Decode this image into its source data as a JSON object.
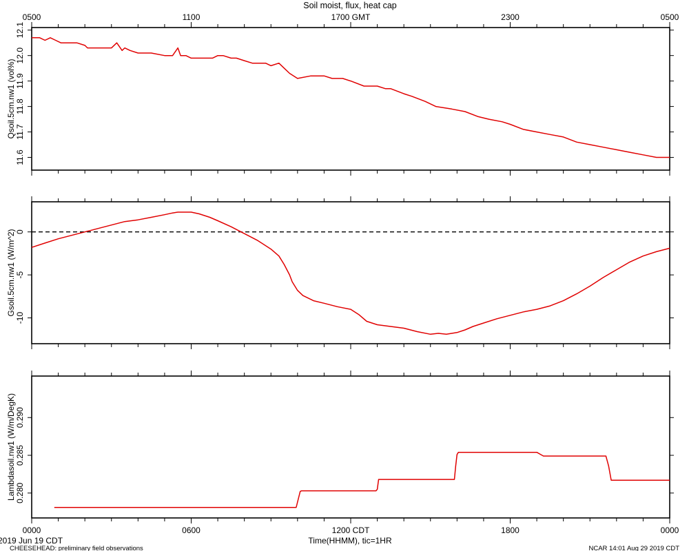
{
  "header": {
    "title": "Soil moist, flux, heat cap"
  },
  "footer": {
    "date_label": "2019 Jun 19 CDT",
    "project_label": "CHEESEHEAD: preliminary field observations",
    "credit_label": "NCAR 14:01 Aug 29 2019 CDT",
    "xlabel": "Time(HHMM), tic=1HR"
  },
  "colors": {
    "series": "#e00000",
    "axes": "#000000",
    "background": "#ffffff"
  },
  "chart_data": [
    {
      "type": "line",
      "title": "Soil moist, flux, heat cap",
      "ylabel": "Qsoil.5cm.nw1 (vol%)",
      "xlabel": "",
      "xlim": [
        0,
        24
      ],
      "ylim": [
        11.55,
        12.11
      ],
      "yticks": [
        11.6,
        11.7,
        11.8,
        11.9,
        12.0,
        12.1
      ],
      "ytick_labels": [
        "11.6",
        "11.7",
        "11.8",
        "11.9",
        "12.0",
        "12.1"
      ],
      "top_axis": {
        "ticks": [
          0,
          6,
          12,
          18,
          24
        ],
        "labels": [
          "0500",
          "1100",
          "1700 GMT",
          "2300",
          "0500"
        ]
      },
      "grid": false,
      "series": [
        {
          "x": [
            0,
            0.3,
            0.5,
            0.7,
            0.9,
            1.1,
            1.3,
            1.5,
            1.7,
            2.0,
            2.1,
            2.5,
            3.0,
            3.2,
            3.4,
            3.5,
            3.7,
            4.0,
            4.2,
            4.5,
            5.0,
            5.3,
            5.5,
            5.6,
            5.8,
            6.0,
            6.2,
            6.5,
            6.8,
            7.0,
            7.2,
            7.5,
            7.7,
            8.0,
            8.3,
            8.5,
            8.8,
            9.0,
            9.3,
            9.5,
            9.7,
            10.0,
            10.5,
            11.0,
            11.3,
            11.7,
            12.0,
            12.5,
            13.0,
            13.3,
            13.5,
            14.0,
            14.3,
            14.8,
            15.2,
            15.8,
            16.3,
            16.8,
            17.2,
            17.7,
            18.0,
            18.5,
            19.0,
            19.5,
            20.0,
            20.5,
            21.0,
            21.5,
            22.0,
            22.5,
            23.0,
            23.5,
            23.8,
            24.0
          ],
          "y": [
            12.07,
            12.07,
            12.06,
            12.07,
            12.06,
            12.05,
            12.05,
            12.05,
            12.05,
            12.04,
            12.03,
            12.03,
            12.03,
            12.05,
            12.02,
            12.03,
            12.02,
            12.01,
            12.01,
            12.01,
            12.0,
            12.0,
            12.03,
            12.0,
            12.0,
            11.99,
            11.99,
            11.99,
            11.99,
            12.0,
            12.0,
            11.99,
            11.99,
            11.98,
            11.97,
            11.97,
            11.97,
            11.96,
            11.97,
            11.95,
            11.93,
            11.91,
            11.92,
            11.92,
            11.91,
            11.91,
            11.9,
            11.88,
            11.88,
            11.87,
            11.87,
            11.85,
            11.84,
            11.82,
            11.8,
            11.79,
            11.78,
            11.76,
            11.75,
            11.74,
            11.73,
            11.71,
            11.7,
            11.69,
            11.68,
            11.66,
            11.65,
            11.64,
            11.63,
            11.62,
            11.61,
            11.6,
            11.6,
            11.6
          ]
        }
      ]
    },
    {
      "type": "line",
      "title": "",
      "ylabel": "Gsoil.5cm.nw1 (W/m^2)",
      "xlabel": "",
      "xlim": [
        0,
        24
      ],
      "ylim": [
        -13,
        3.5
      ],
      "yticks": [
        -10,
        -5,
        0
      ],
      "ytick_labels": [
        "-10",
        "-5",
        "0"
      ],
      "reference_line": {
        "y": 0,
        "style": "dashed"
      },
      "grid": false,
      "series": [
        {
          "x": [
            0,
            0.5,
            1.0,
            1.5,
            2.0,
            2.5,
            3.0,
            3.5,
            4.0,
            4.5,
            5.0,
            5.3,
            5.5,
            5.8,
            6.0,
            6.3,
            6.7,
            7.0,
            7.5,
            8.0,
            8.5,
            9.0,
            9.3,
            9.5,
            9.7,
            9.8,
            10.0,
            10.2,
            10.4,
            10.6,
            11.0,
            11.5,
            12.0,
            12.3,
            12.6,
            13.0,
            13.5,
            14.0,
            14.5,
            15.0,
            15.3,
            15.6,
            16.0,
            16.3,
            16.6,
            17.0,
            17.5,
            18.0,
            18.5,
            19.0,
            19.5,
            20.0,
            20.5,
            21.0,
            21.5,
            22.0,
            22.5,
            23.0,
            23.5,
            24.0
          ],
          "y": [
            -1.8,
            -1.3,
            -0.8,
            -0.4,
            0.0,
            0.4,
            0.8,
            1.2,
            1.4,
            1.7,
            2.0,
            2.2,
            2.3,
            2.3,
            2.3,
            2.1,
            1.7,
            1.3,
            0.6,
            -0.2,
            -1.0,
            -2.0,
            -2.8,
            -3.8,
            -5.0,
            -5.8,
            -6.8,
            -7.4,
            -7.7,
            -8.0,
            -8.3,
            -8.7,
            -9.0,
            -9.6,
            -10.4,
            -10.8,
            -11.0,
            -11.2,
            -11.6,
            -11.9,
            -11.8,
            -11.9,
            -11.7,
            -11.4,
            -11.0,
            -10.6,
            -10.1,
            -9.7,
            -9.3,
            -9.0,
            -8.6,
            -8.0,
            -7.2,
            -6.3,
            -5.3,
            -4.4,
            -3.5,
            -2.8,
            -2.3,
            -1.9
          ]
        }
      ]
    },
    {
      "type": "line",
      "title": "",
      "ylabel": "Lambdasoil.nw1 (W/m/DegK)",
      "xlabel": "Time(HHMM), tic=1HR",
      "xlim": [
        0,
        24
      ],
      "ylim": [
        0.2767,
        0.2955
      ],
      "yticks": [
        0.28,
        0.285,
        0.29
      ],
      "ytick_labels": [
        "0.280",
        "0.285",
        "0.290"
      ],
      "xticks": [
        0,
        6,
        12,
        18,
        24
      ],
      "xtick_labels": [
        "0000",
        "0600",
        "1200 CDT",
        "1800",
        "0000"
      ],
      "grid": false,
      "series": [
        {
          "x": [
            0.85,
            9.95,
            10.0,
            10.1,
            10.15,
            12.95,
            13.0,
            13.05,
            13.1,
            15.9,
            15.95,
            16.0,
            16.05,
            19.0,
            19.15,
            19.25,
            21.6,
            21.7,
            21.8,
            24.0
          ],
          "y": [
            0.2781,
            0.2781,
            0.2788,
            0.2802,
            0.2803,
            0.2803,
            0.2805,
            0.2818,
            0.2818,
            0.2818,
            0.2836,
            0.2851,
            0.2854,
            0.2854,
            0.2851,
            0.2849,
            0.2849,
            0.2836,
            0.2817,
            0.2817
          ]
        }
      ]
    }
  ]
}
